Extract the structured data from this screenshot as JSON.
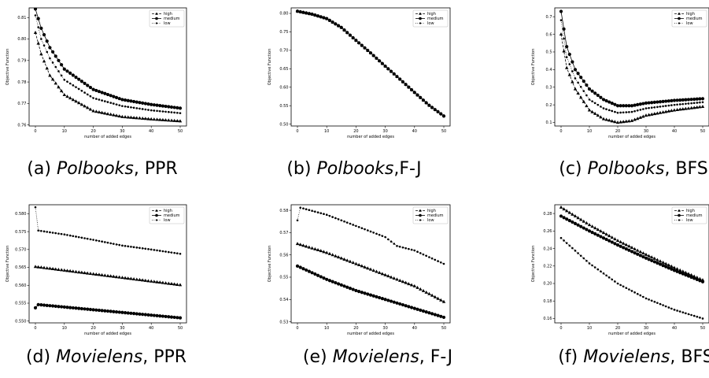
{
  "captions": [
    {
      "prefix": "(a) ",
      "dataset": "Polbooks",
      "suffix": ", PPR"
    },
    {
      "prefix": "(b) ",
      "dataset": "Polbooks",
      "suffix": ",F-J"
    },
    {
      "prefix": "(c) ",
      "dataset": "Polbooks",
      "suffix": ", BFS"
    },
    {
      "prefix": "(d) ",
      "dataset": "Movielens",
      "suffix": ", PPR"
    },
    {
      "prefix": "(e) ",
      "dataset": "Movielens",
      "suffix": ", F-J"
    },
    {
      "prefix": "(f) ",
      "dataset": "Movielens",
      "suffix": ", BFS"
    }
  ],
  "chart_data": [
    {
      "type": "line",
      "xlabel": "number of added edges",
      "ylabel": "Objective Function",
      "xlim": [
        0,
        50
      ],
      "ylim": [
        0.7595,
        0.8145
      ],
      "xticks": [
        0,
        10,
        20,
        30,
        40,
        50
      ],
      "yticks": [
        0.76,
        0.77,
        0.78,
        0.79,
        0.8,
        0.81
      ],
      "legend": "top-right",
      "series": [
        {
          "name": "high",
          "marker": "triangle",
          "style": "dashed",
          "values": [
            [
              0,
              0.803
            ],
            [
              2,
              0.793
            ],
            [
              5,
              0.783
            ],
            [
              10,
              0.774
            ],
            [
              20,
              0.7665
            ],
            [
              30,
              0.7638
            ],
            [
              40,
              0.7627
            ],
            [
              50,
              0.7618
            ]
          ]
        },
        {
          "name": "medium",
          "marker": "circle",
          "style": "solid",
          "values": [
            [
              0,
              0.814
            ],
            [
              2,
              0.805
            ],
            [
              5,
              0.796
            ],
            [
              10,
              0.786
            ],
            [
              20,
              0.7765
            ],
            [
              30,
              0.7718
            ],
            [
              40,
              0.7695
            ],
            [
              50,
              0.7678
            ]
          ]
        },
        {
          "name": "low",
          "marker": "dot",
          "style": "dotted",
          "values": [
            [
              0,
              0.811
            ],
            [
              2,
              0.8
            ],
            [
              5,
              0.791
            ],
            [
              10,
              0.781
            ],
            [
              20,
              0.7725
            ],
            [
              30,
              0.7688
            ],
            [
              40,
              0.7668
            ],
            [
              50,
              0.7655
            ]
          ]
        }
      ]
    },
    {
      "type": "line",
      "xlabel": "number of added edges",
      "ylabel": "Objective Function",
      "xlim": [
        0,
        50
      ],
      "ylim": [
        0.495,
        0.815
      ],
      "xticks": [
        0,
        10,
        20,
        30,
        40,
        50
      ],
      "yticks": [
        0.5,
        0.55,
        0.6,
        0.65,
        0.7,
        0.75,
        0.8
      ],
      "legend": "top-right",
      "series": [
        {
          "name": "high",
          "marker": "triangle",
          "style": "dashed",
          "values": [
            [
              0,
              0.806
            ],
            [
              5,
              0.798
            ],
            [
              10,
              0.786
            ],
            [
              15,
              0.762
            ],
            [
              20,
              0.727
            ],
            [
              25,
              0.693
            ],
            [
              30,
              0.657
            ],
            [
              35,
              0.622
            ],
            [
              40,
              0.586
            ],
            [
              45,
              0.551
            ],
            [
              50,
              0.523
            ]
          ]
        },
        {
          "name": "medium",
          "marker": "circle",
          "style": "solid",
          "values": [
            [
              0,
              0.806
            ],
            [
              5,
              0.798
            ],
            [
              10,
              0.786
            ],
            [
              15,
              0.762
            ],
            [
              20,
              0.727
            ],
            [
              25,
              0.693
            ],
            [
              30,
              0.657
            ],
            [
              35,
              0.622
            ],
            [
              40,
              0.586
            ],
            [
              45,
              0.551
            ],
            [
              50,
              0.522
            ]
          ]
        },
        {
          "name": "low",
          "marker": "dot",
          "style": "dotted",
          "values": [
            [
              0,
              0.807
            ],
            [
              5,
              0.799
            ],
            [
              10,
              0.787
            ],
            [
              15,
              0.763
            ],
            [
              20,
              0.728
            ],
            [
              25,
              0.694
            ],
            [
              30,
              0.658
            ],
            [
              35,
              0.623
            ],
            [
              40,
              0.587
            ],
            [
              45,
              0.552
            ],
            [
              50,
              0.521
            ]
          ]
        }
      ]
    },
    {
      "type": "line",
      "xlabel": "number of added edges",
      "ylabel": "Objective Function",
      "xlim": [
        0,
        50
      ],
      "ylim": [
        0.08,
        0.75
      ],
      "xticks": [
        0,
        10,
        20,
        30,
        40,
        50
      ],
      "yticks": [
        0.1,
        0.2,
        0.3,
        0.4,
        0.5,
        0.6,
        0.7
      ],
      "legend": "top-right",
      "series": [
        {
          "name": "high",
          "marker": "triangle",
          "style": "dashed",
          "values": [
            [
              0,
              0.6
            ],
            [
              2,
              0.41
            ],
            [
              5,
              0.29
            ],
            [
              10,
              0.17
            ],
            [
              15,
              0.12
            ],
            [
              20,
              0.1
            ],
            [
              25,
              0.11
            ],
            [
              30,
              0.14
            ],
            [
              40,
              0.17
            ],
            [
              50,
              0.19
            ]
          ]
        },
        {
          "name": "medium",
          "marker": "circle",
          "style": "solid",
          "values": [
            [
              0,
              0.73
            ],
            [
              2,
              0.53
            ],
            [
              5,
              0.4
            ],
            [
              10,
              0.29
            ],
            [
              15,
              0.23
            ],
            [
              20,
              0.195
            ],
            [
              25,
              0.195
            ],
            [
              30,
              0.21
            ],
            [
              40,
              0.225
            ],
            [
              50,
              0.235
            ]
          ]
        },
        {
          "name": "low",
          "marker": "dot",
          "style": "dotted",
          "values": [
            [
              0,
              0.68
            ],
            [
              2,
              0.47
            ],
            [
              5,
              0.35
            ],
            [
              10,
              0.23
            ],
            [
              15,
              0.18
            ],
            [
              20,
              0.155
            ],
            [
              25,
              0.16
            ],
            [
              30,
              0.18
            ],
            [
              40,
              0.2
            ],
            [
              50,
              0.215
            ]
          ]
        }
      ]
    },
    {
      "type": "line",
      "xlabel": "number of added edges",
      "ylabel": "Objective Function",
      "xlim": [
        0,
        50
      ],
      "ylim": [
        0.5495,
        0.5825
      ],
      "xticks": [
        0,
        10,
        20,
        30,
        40,
        50
      ],
      "yticks": [
        0.55,
        0.555,
        0.56,
        0.565,
        0.57,
        0.575,
        0.58
      ],
      "legend": "top-right",
      "series": [
        {
          "name": "high",
          "marker": "triangle",
          "style": "dashed",
          "values": [
            [
              0,
              0.5652
            ],
            [
              50,
              0.5601
            ]
          ]
        },
        {
          "name": "medium",
          "marker": "circle",
          "style": "solid",
          "values": [
            [
              0,
              0.5537
            ],
            [
              1,
              0.5546
            ],
            [
              50,
              0.5509
            ]
          ]
        },
        {
          "name": "low",
          "marker": "dot",
          "style": "dotted",
          "values": [
            [
              0,
              0.5818
            ],
            [
              1,
              0.5753
            ],
            [
              10,
              0.5742
            ],
            [
              20,
              0.5727
            ],
            [
              30,
              0.5711
            ],
            [
              40,
              0.57
            ],
            [
              50,
              0.5688
            ]
          ]
        }
      ]
    },
    {
      "type": "line",
      "xlabel": "number of added edges",
      "ylabel": "Objective Function",
      "xlim": [
        0,
        50
      ],
      "ylim": [
        0.5295,
        0.5825
      ],
      "xticks": [
        0,
        10,
        20,
        30,
        40,
        50
      ],
      "yticks": [
        0.53,
        0.54,
        0.55,
        0.56,
        0.57,
        0.58
      ],
      "legend": "top-right",
      "series": [
        {
          "name": "high",
          "marker": "triangle",
          "style": "dashed",
          "values": [
            [
              0,
              0.565
            ],
            [
              10,
              0.561
            ],
            [
              20,
              0.556
            ],
            [
              30,
              0.551
            ],
            [
              40,
              0.546
            ],
            [
              50,
              0.539
            ]
          ]
        },
        {
          "name": "medium",
          "marker": "circle",
          "style": "solid",
          "values": [
            [
              0,
              0.555
            ],
            [
              10,
              0.549
            ],
            [
              20,
              0.544
            ],
            [
              30,
              0.54
            ],
            [
              40,
              0.536
            ],
            [
              50,
              0.532
            ]
          ]
        },
        {
          "name": "low",
          "marker": "dot",
          "style": "dotted",
          "values": [
            [
              0,
              0.5755
            ],
            [
              1,
              0.5812
            ],
            [
              10,
              0.578
            ],
            [
              20,
              0.573
            ],
            [
              30,
              0.568
            ],
            [
              34,
              0.564
            ],
            [
              40,
              0.562
            ],
            [
              50,
              0.556
            ]
          ]
        }
      ]
    },
    {
      "type": "line",
      "xlabel": "number of added edges",
      "ylabel": "Objective Function",
      "xlim": [
        0,
        50
      ],
      "ylim": [
        0.155,
        0.29
      ],
      "xticks": [
        0,
        10,
        20,
        30,
        40,
        50
      ],
      "yticks": [
        0.16,
        0.18,
        0.2,
        0.22,
        0.24,
        0.26,
        0.28
      ],
      "legend": "top-right",
      "series": [
        {
          "name": "high",
          "marker": "triangle",
          "style": "dashed",
          "values": [
            [
              0,
              0.287
            ],
            [
              10,
              0.267
            ],
            [
              20,
              0.249
            ],
            [
              30,
              0.233
            ],
            [
              40,
              0.218
            ],
            [
              50,
              0.204
            ]
          ]
        },
        {
          "name": "medium",
          "marker": "circle",
          "style": "solid",
          "values": [
            [
              0,
              0.277
            ],
            [
              10,
              0.26
            ],
            [
              20,
              0.244
            ],
            [
              30,
              0.229
            ],
            [
              40,
              0.215
            ],
            [
              50,
              0.202
            ]
          ]
        },
        {
          "name": "low",
          "marker": "dot",
          "style": "dotted",
          "values": [
            [
              0,
              0.252
            ],
            [
              10,
              0.223
            ],
            [
              20,
              0.2
            ],
            [
              30,
              0.183
            ],
            [
              40,
              0.17
            ],
            [
              50,
              0.16
            ]
          ]
        }
      ]
    }
  ]
}
